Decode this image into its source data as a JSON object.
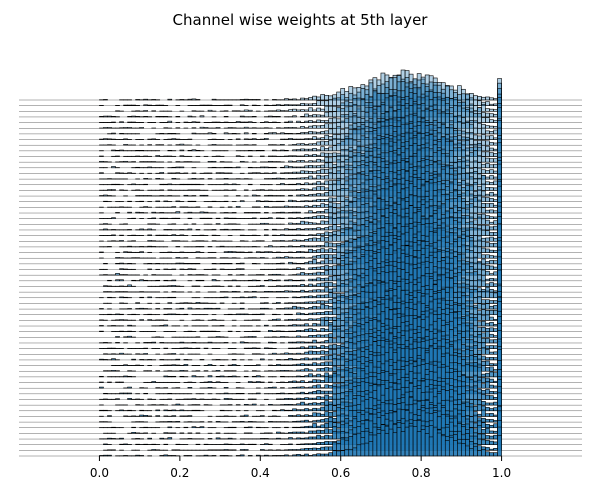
{
  "chart_data": {
    "type": "histogram-ridgeline",
    "title": "Channel wise weights at 5th layer",
    "xlabel": "",
    "ylabel": "",
    "xlim": [
      -0.2,
      1.2
    ],
    "xticks": [
      0.0,
      0.2,
      0.4,
      0.6,
      0.8,
      1.0
    ],
    "x_tick_labels": [
      "0.0",
      "0.2",
      "0.4",
      "0.6",
      "0.8",
      "1.0"
    ],
    "y_axis_visible": false,
    "grid": false,
    "legend": "none",
    "n_channels": 64,
    "bin_width": 0.01,
    "value_range": [
      0.0,
      1.0
    ],
    "distribution": {
      "peak_x": 0.77,
      "bulk_range": [
        0.6,
        1.0
      ],
      "left_tail_min": 0.0,
      "spike_at": 1.0
    },
    "colors": {
      "bar_fill": "#1f77b4",
      "bar_edge": "#000000",
      "baseline": "#000000",
      "axis": "#000000"
    }
  }
}
